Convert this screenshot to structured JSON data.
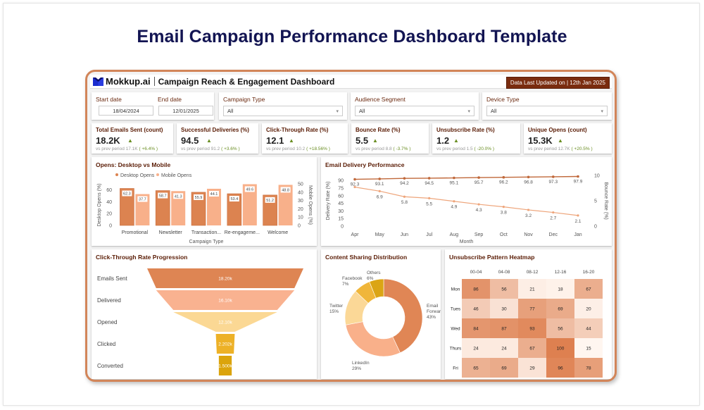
{
  "page_title": "Email Campaign Performance Dashboard Template",
  "header": {
    "brand": "Mokkup.ai",
    "title": "Campaign Reach & Engagement Dashboard",
    "updated": "Data Last Updated on | 12th Jan 2025"
  },
  "filters": {
    "start_date_label": "Start date",
    "start_date_value": "18/04/2024",
    "end_date_label": "End date",
    "end_date_value": "12/01/2025",
    "campaign_type_label": "Campaign Type",
    "campaign_type_value": "All",
    "audience_label": "Audience Segment",
    "audience_value": "All",
    "device_label": "Device Type",
    "device_value": "All"
  },
  "kpis": [
    {
      "label": "Total Emails Sent (count)",
      "value": "18.2K",
      "prev_text": "vs prev period 17.1K",
      "change": "( +6.4% )"
    },
    {
      "label": "Successful Deliveries (%)",
      "value": "94.5",
      "prev_text": "vs prev period 91.2",
      "change": "( +3.6% )"
    },
    {
      "label": "Click-Through Rate (%)",
      "value": "12.1",
      "prev_text": "vs prev period 10.2",
      "change": "( +18.56% )"
    },
    {
      "label": "Bounce Rate (%)",
      "value": "5.5",
      "prev_text": "vs prev period 8.8",
      "change": "( -3.7% )"
    },
    {
      "label": "Unsubscribe Rate (%)",
      "value": "1.2",
      "prev_text": "vs prev period 1.5",
      "change": "( -20.0% )"
    },
    {
      "label": "Unique Opens (count)",
      "value": "15.3K",
      "prev_text": "vs prev period 12.7K",
      "change": "( +20.5% )"
    }
  ],
  "colors": {
    "accent": "#d28559",
    "desktop": "#dc8350",
    "mobile": "#f8b08a",
    "delivery_line": "#c0683a",
    "bounce_line": "#eea57b",
    "kpi_up": "#6a8e23",
    "funnel": [
      "#de8553",
      "#f9b290",
      "#fbd894",
      "#edb127",
      "#dba40c"
    ],
    "donut": [
      "#e08655",
      "#f9b08a",
      "#fbd897",
      "#f0b63a",
      "#dba515"
    ]
  },
  "chart_data": [
    {
      "type": "bar",
      "title": "Opens: Desktop vs Mobile",
      "categories": [
        "Promotional",
        "Newsletter",
        "Transaction...",
        "Re-engageme...",
        "Welcome"
      ],
      "series": [
        {
          "name": "Desktop Opens",
          "axis": "left",
          "values": [
            62.3,
            58.7,
            55.9,
            53.4,
            51.2
          ]
        },
        {
          "name": "Mobile Opens",
          "axis": "right",
          "values": [
            37.7,
            41.3,
            44.1,
            49.6,
            48.8
          ]
        }
      ],
      "xlabel": "Campaign Type",
      "ylabel": "Desktop Opens (%)",
      "ylabel_right": "Mobile Opens (%)",
      "ylim": [
        0,
        70
      ],
      "yticks": [
        0,
        20,
        40,
        60
      ],
      "ylim_right": [
        0,
        50
      ],
      "yticks_right": [
        0,
        10,
        20,
        30,
        40,
        50
      ],
      "legend": "top-left"
    },
    {
      "type": "line",
      "title": "Email Delivery Performance",
      "x": [
        "Apr",
        "May",
        "Jun",
        "Jul",
        "Aug",
        "Sep",
        "Oct",
        "Nov",
        "Dec",
        "Jan"
      ],
      "series": [
        {
          "name": "Delivery Rate (%)",
          "axis": "left",
          "values": [
            92.3,
            93.1,
            94.2,
            94.5,
            95.1,
            95.7,
            96.2,
            96.8,
            97.3,
            97.9
          ]
        },
        {
          "name": "Bounce Rate (%)",
          "axis": "right",
          "values": [
            7.7,
            6.9,
            5.8,
            5.5,
            4.9,
            4.3,
            3.8,
            3.2,
            2.7,
            2.1
          ]
        }
      ],
      "bounce_labels": [
        "",
        "6.9",
        "5.8",
        "5.5",
        "4.9",
        "4.3",
        "3.8",
        "3.2",
        "2.7",
        "2.1"
      ],
      "xlabel": "Month",
      "ylabel": "Delivery Rate (%)",
      "ylabel_right": "Bounce Rate (%)",
      "ylim": [
        0,
        100
      ],
      "yticks": [
        0,
        15,
        30,
        45,
        60,
        75,
        90
      ],
      "ylim_right": [
        0,
        10
      ],
      "yticks_right": [
        0,
        5,
        10
      ]
    },
    {
      "type": "bar",
      "subtype": "funnel",
      "title": "Click-Through Rate Progression",
      "categories": [
        "Emails Sent",
        "Delivered",
        "Opened",
        "Clicked",
        "Converted"
      ],
      "values": [
        18200,
        16100,
        12100,
        2202,
        1500
      ],
      "labels": [
        "18.20k",
        "16.10k",
        "12.10k",
        "2.202k",
        "1.500k"
      ]
    },
    {
      "type": "pie",
      "subtype": "donut",
      "title": "Content Sharing Distribution",
      "categories": [
        "Email Forward",
        "LinkedIn",
        "Twitter",
        "Facebook",
        "Others"
      ],
      "values": [
        43,
        29,
        15,
        7,
        6
      ],
      "labels": [
        [
          "Email",
          "Forward",
          "43%"
        ],
        [
          "LinkedIn",
          "29%"
        ],
        [
          "Twitter",
          "15%"
        ],
        [
          "Facebook",
          "7%"
        ],
        [
          "Others",
          "6%"
        ]
      ]
    },
    {
      "type": "heatmap",
      "title": "Unsubscribe Pattern Heatmap",
      "columns": [
        "00-04",
        "04-08",
        "08-12",
        "12-16",
        "16-20"
      ],
      "rows": [
        "Mon",
        "Tues",
        "Wed",
        "Thurs",
        "Fri"
      ],
      "values": [
        [
          86,
          56,
          21,
          18,
          67
        ],
        [
          46,
          30,
          77,
          69,
          20
        ],
        [
          84,
          87,
          93,
          56,
          44
        ],
        [
          24,
          24,
          67,
          100,
          15
        ],
        [
          65,
          69,
          29,
          96,
          78
        ]
      ],
      "range": [
        15,
        100
      ]
    }
  ]
}
